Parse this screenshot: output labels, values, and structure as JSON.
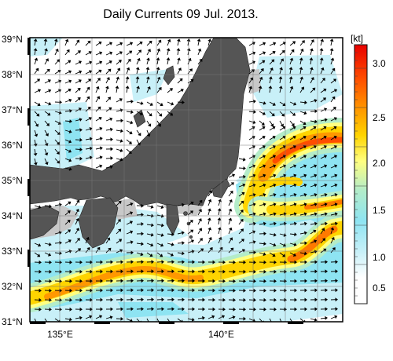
{
  "title": "Daily Currents 09 Jul. 2013.",
  "lat_labels": [
    "39°N",
    "38°N",
    "37°N",
    "36°N",
    "35°N",
    "34°N",
    "33°N",
    "32°N",
    "31°N"
  ],
  "lon_labels": [
    "135°E",
    "140°E"
  ],
  "colorbar": {
    "unit": "[kt]",
    "ticks": [
      "3.0",
      "2.5",
      "2.0",
      "1.5",
      "1.0",
      "0.5"
    ],
    "range": [
      0,
      3.3
    ],
    "colors": [
      "#ffffff",
      "#c8f0f8",
      "#8ee4f2",
      "#b4ecc8",
      "#ffff80",
      "#ffd400",
      "#ff9800",
      "#ff4d00",
      "#e80000"
    ]
  },
  "colors": {
    "land": "#555555",
    "shallow": "#c8c8c8",
    "frame": "#000000",
    "arrow": "#000000"
  }
}
